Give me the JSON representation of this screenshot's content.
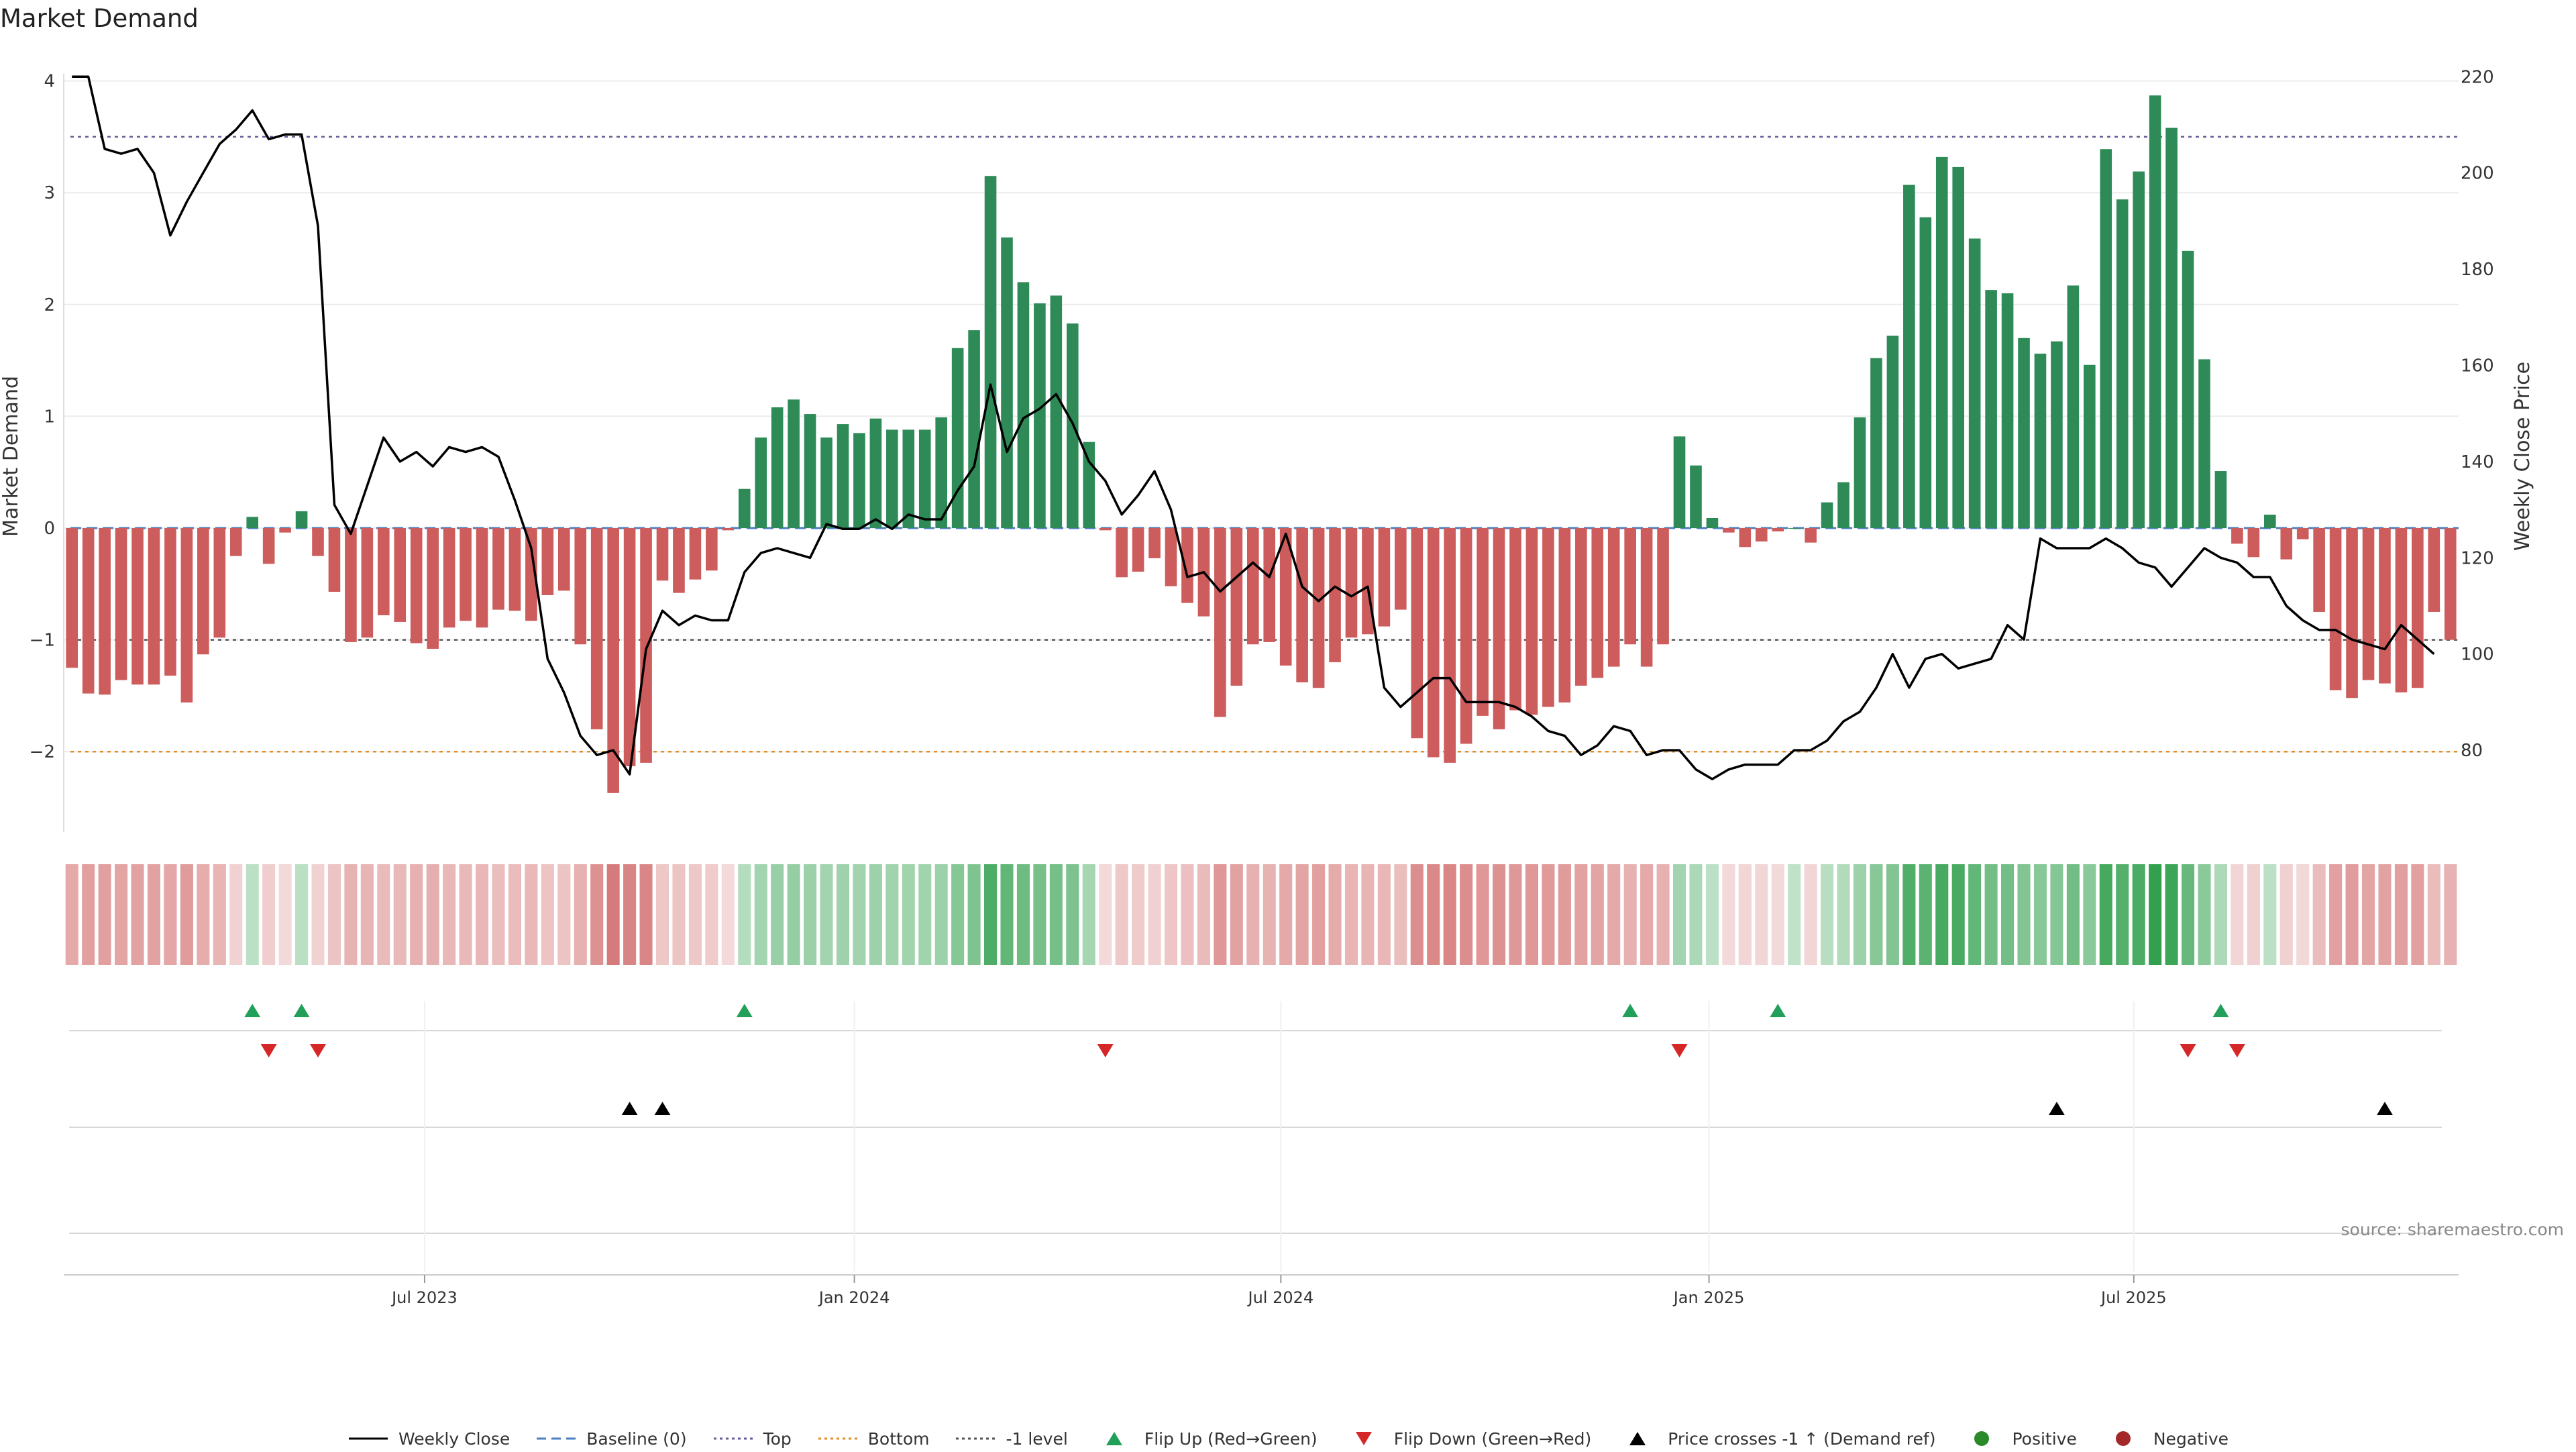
{
  "chart_data": {
    "type": "bar",
    "title": "Market Demand",
    "ylabel_left": "Market Demand",
    "ylabel_right": "Weekly Close Price",
    "ylim_left": [
      -2.7,
      4.0
    ],
    "yticks_left": [
      4,
      3,
      2,
      1,
      0,
      -1,
      -2
    ],
    "ytick_labels_left": [
      "4",
      "3",
      "2",
      "1",
      "0",
      "−1",
      "−2"
    ],
    "ylim_right": [
      63,
      222
    ],
    "yticks_right": [
      220,
      200,
      180,
      160,
      140,
      120,
      100,
      80
    ],
    "x_tick_labels": [
      "Jul 2023",
      "Jan 2024",
      "Jul 2024",
      "Jan 2025",
      "Jul 2025"
    ],
    "x_tick_weeks": [
      21.5,
      47.7,
      73.7,
      99.8,
      125.7
    ],
    "reference_lines": {
      "top": 3.5,
      "bottom": -2.0,
      "minus_one": -1.0,
      "baseline": 0
    },
    "demand": [
      -1.25,
      -1.48,
      -1.49,
      -1.36,
      -1.4,
      -1.4,
      -1.32,
      -1.56,
      -1.13,
      -0.98,
      -0.25,
      0.1,
      -0.32,
      -0.04,
      0.15,
      -0.25,
      -0.57,
      -1.02,
      -0.98,
      -0.78,
      -0.84,
      -1.03,
      -1.08,
      -0.89,
      -0.83,
      -0.89,
      -0.73,
      -0.74,
      -0.83,
      -0.6,
      -0.56,
      -1.04,
      -1.8,
      -2.37,
      -2.13,
      -2.1,
      -0.47,
      -0.58,
      -0.46,
      -0.38,
      -0.02,
      0.35,
      0.81,
      1.08,
      1.15,
      1.02,
      0.81,
      0.93,
      0.85,
      0.98,
      0.88,
      0.88,
      0.88,
      0.99,
      1.61,
      1.77,
      3.15,
      2.6,
      2.2,
      2.01,
      2.08,
      1.83,
      0.77,
      -0.02,
      -0.44,
      -0.39,
      -0.27,
      -0.52,
      -0.67,
      -0.79,
      -1.69,
      -1.41,
      -1.04,
      -1.02,
      -1.23,
      -1.38,
      -1.43,
      -1.2,
      -0.98,
      -0.95,
      -0.88,
      -0.73,
      -1.88,
      -2.05,
      -2.1,
      -1.93,
      -1.68,
      -1.8,
      -1.63,
      -1.67,
      -1.6,
      -1.56,
      -1.41,
      -1.34,
      -1.24,
      -1.04,
      -1.24,
      -1.04,
      0.82,
      0.56,
      0.09,
      -0.04,
      -0.17,
      -0.12,
      -0.03,
      0.0,
      -0.13,
      0.23,
      0.41,
      0.99,
      1.52,
      1.72,
      3.07,
      2.78,
      3.32,
      3.23,
      2.59,
      2.13,
      2.1,
      1.7,
      1.56,
      1.67,
      2.17,
      1.46,
      3.39,
      2.94,
      3.19,
      3.87,
      3.58,
      2.48,
      1.51,
      0.51,
      -0.14,
      -0.26,
      0.12,
      -0.28,
      -0.1,
      -0.75,
      -1.45,
      -1.52,
      -1.36,
      -1.39,
      -1.47,
      -1.43,
      -0.75,
      -1.0
    ],
    "close": [
      220,
      220,
      205,
      204,
      205,
      200,
      187,
      194,
      200,
      206,
      209,
      213,
      207,
      208,
      208,
      189,
      131,
      125,
      135,
      145,
      140,
      142,
      139,
      143,
      142,
      143,
      141,
      132,
      122,
      99,
      92,
      83,
      79,
      80,
      75,
      101,
      109,
      106,
      108,
      107,
      107,
      117,
      121,
      122,
      121,
      120,
      127,
      126,
      126,
      128,
      126,
      129,
      128,
      128,
      134,
      139,
      156,
      142,
      149,
      151,
      154,
      148,
      140,
      136,
      129,
      133,
      138,
      130,
      116,
      117,
      113,
      116,
      119,
      116,
      125,
      114,
      111,
      114,
      112,
      114,
      93,
      89,
      92,
      95,
      95,
      90,
      90,
      90,
      89,
      87,
      84,
      83,
      79,
      81,
      85,
      84,
      79,
      80,
      80,
      76,
      74,
      76,
      77,
      77,
      77,
      80,
      80,
      82,
      86,
      88,
      93,
      100,
      93,
      99,
      100,
      97,
      98,
      99,
      106,
      103,
      124,
      122,
      122,
      122,
      124,
      122,
      119,
      118,
      114,
      118,
      122,
      120,
      119,
      116,
      116,
      110,
      107,
      105,
      105,
      103,
      102,
      101,
      106,
      103,
      100
    ],
    "flip_up_weeks": [
      11,
      14,
      41,
      95,
      104,
      131
    ],
    "flip_down_weeks": [
      12,
      15,
      63,
      98,
      129,
      132
    ],
    "price_cross_weeks": [
      34,
      36,
      121,
      141
    ],
    "source_text": "source: sharemaestro.com",
    "legend": [
      {
        "label": "Weekly Close",
        "symbol": "solid-line",
        "color": "#000000"
      },
      {
        "label": "Baseline (0)",
        "symbol": "dashed-line",
        "color": "#4a7fc1"
      },
      {
        "label": "Top",
        "symbol": "dotted-line",
        "color": "#6a5a9a"
      },
      {
        "label": "Bottom",
        "symbol": "dotted-line",
        "color": "#e08c2a"
      },
      {
        "label": "-1 level",
        "symbol": "dotted-line",
        "color": "#555555"
      },
      {
        "label": "Flip Up (Red→Green)",
        "symbol": "triangle-up",
        "color": "#22a05a"
      },
      {
        "label": "Flip Down (Green→Red)",
        "symbol": "triangle-down",
        "color": "#d62728"
      },
      {
        "label": "Price crosses -1 ↑ (Demand ref)",
        "symbol": "triangle-up",
        "color": "#000000"
      },
      {
        "label": "Positive",
        "symbol": "circle",
        "color": "#2a8a2a"
      },
      {
        "label": "Negative",
        "symbol": "circle",
        "color": "#a52828"
      }
    ],
    "colors": {
      "positive_bar": "#2e8b57",
      "negative_bar": "#cd5c5c",
      "heat_positive": "#2e9e4a",
      "heat_negative": "#cd5c5c"
    }
  }
}
